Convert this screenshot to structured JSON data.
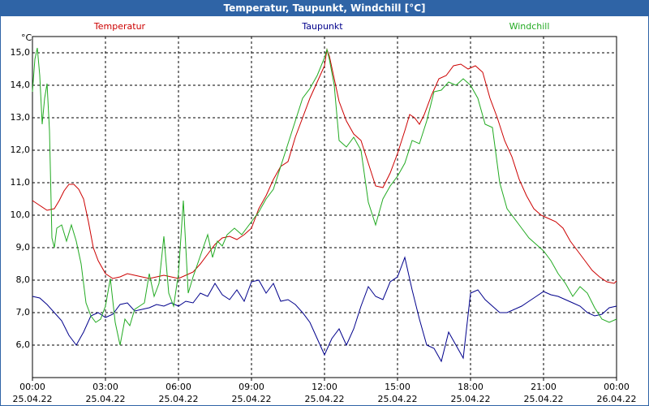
{
  "window": {
    "title": "Temperatur, Taupunkt, Windchill [°C]"
  },
  "chart_data": {
    "type": "line",
    "title": "Temperatur, Taupunkt, Windchill [°C]",
    "ylabel": "°C",
    "ylim": [
      5.0,
      15.5
    ],
    "xlim_hours": [
      0,
      24
    ],
    "yticks": [
      "6,0",
      "7,0",
      "8,0",
      "9,0",
      "10,0",
      "11,0",
      "12,0",
      "13,0",
      "14,0",
      "15,0"
    ],
    "ytick_values": [
      6,
      7,
      8,
      9,
      10,
      11,
      12,
      13,
      14,
      15
    ],
    "xticks": [
      {
        "time": "00:00",
        "date": "25.04.22",
        "hour": 0
      },
      {
        "time": "03:00",
        "date": "25.04.22",
        "hour": 3
      },
      {
        "time": "06:00",
        "date": "25.04.22",
        "hour": 6
      },
      {
        "time": "09:00",
        "date": "25.04.22",
        "hour": 9
      },
      {
        "time": "12:00",
        "date": "25.04.22",
        "hour": 12
      },
      {
        "time": "15:00",
        "date": "25.04.22",
        "hour": 15
      },
      {
        "time": "18:00",
        "date": "25.04.22",
        "hour": 18
      },
      {
        "time": "21:00",
        "date": "25.04.22",
        "hour": 21
      },
      {
        "time": "00:00",
        "date": "26.04.22",
        "hour": 24
      }
    ],
    "grid": true,
    "series": [
      {
        "name": "Temperatur",
        "color": "#cc0000",
        "points": [
          [
            0,
            10.45
          ],
          [
            0.3,
            10.3
          ],
          [
            0.6,
            10.15
          ],
          [
            0.9,
            10.2
          ],
          [
            1.1,
            10.45
          ],
          [
            1.3,
            10.75
          ],
          [
            1.5,
            10.95
          ],
          [
            1.7,
            10.95
          ],
          [
            1.9,
            10.8
          ],
          [
            2.1,
            10.5
          ],
          [
            2.3,
            9.8
          ],
          [
            2.5,
            9.0
          ],
          [
            2.7,
            8.6
          ],
          [
            3.0,
            8.2
          ],
          [
            3.3,
            8.05
          ],
          [
            3.6,
            8.1
          ],
          [
            3.9,
            8.2
          ],
          [
            4.2,
            8.15
          ],
          [
            4.5,
            8.1
          ],
          [
            4.8,
            8.05
          ],
          [
            5.1,
            8.1
          ],
          [
            5.4,
            8.15
          ],
          [
            5.7,
            8.1
          ],
          [
            6.0,
            8.05
          ],
          [
            6.3,
            8.15
          ],
          [
            6.6,
            8.25
          ],
          [
            6.9,
            8.5
          ],
          [
            7.2,
            8.8
          ],
          [
            7.5,
            9.1
          ],
          [
            7.8,
            9.3
          ],
          [
            8.1,
            9.35
          ],
          [
            8.4,
            9.25
          ],
          [
            8.7,
            9.4
          ],
          [
            9.0,
            9.6
          ],
          [
            9.3,
            10.2
          ],
          [
            9.6,
            10.6
          ],
          [
            9.9,
            11.1
          ],
          [
            10.2,
            11.5
          ],
          [
            10.5,
            11.65
          ],
          [
            10.8,
            12.4
          ],
          [
            11.1,
            13.0
          ],
          [
            11.4,
            13.6
          ],
          [
            11.7,
            14.1
          ],
          [
            12.0,
            14.6
          ],
          [
            12.1,
            15.1
          ],
          [
            12.2,
            14.9
          ],
          [
            12.4,
            14.2
          ],
          [
            12.6,
            13.5
          ],
          [
            12.9,
            12.9
          ],
          [
            13.2,
            12.5
          ],
          [
            13.5,
            12.3
          ],
          [
            13.8,
            11.6
          ],
          [
            14.1,
            10.9
          ],
          [
            14.4,
            10.85
          ],
          [
            14.7,
            11.3
          ],
          [
            15.0,
            11.9
          ],
          [
            15.3,
            12.6
          ],
          [
            15.5,
            13.1
          ],
          [
            15.7,
            13.0
          ],
          [
            15.9,
            12.8
          ],
          [
            16.1,
            13.1
          ],
          [
            16.4,
            13.7
          ],
          [
            16.7,
            14.2
          ],
          [
            17.0,
            14.3
          ],
          [
            17.3,
            14.6
          ],
          [
            17.6,
            14.65
          ],
          [
            17.9,
            14.5
          ],
          [
            18.2,
            14.6
          ],
          [
            18.5,
            14.4
          ],
          [
            18.8,
            13.6
          ],
          [
            19.1,
            13.0
          ],
          [
            19.4,
            12.3
          ],
          [
            19.7,
            11.8
          ],
          [
            20.0,
            11.1
          ],
          [
            20.3,
            10.6
          ],
          [
            20.6,
            10.2
          ],
          [
            20.9,
            10.0
          ],
          [
            21.2,
            9.9
          ],
          [
            21.5,
            9.8
          ],
          [
            21.8,
            9.6
          ],
          [
            22.1,
            9.2
          ],
          [
            22.4,
            8.9
          ],
          [
            22.7,
            8.6
          ],
          [
            23.0,
            8.3
          ],
          [
            23.3,
            8.1
          ],
          [
            23.6,
            7.95
          ],
          [
            23.9,
            7.9
          ],
          [
            24.0,
            7.98
          ]
        ]
      },
      {
        "name": "Taupunkt",
        "color": "#00008b",
        "points": [
          [
            0,
            7.5
          ],
          [
            0.3,
            7.45
          ],
          [
            0.6,
            7.25
          ],
          [
            0.9,
            7.0
          ],
          [
            1.2,
            6.75
          ],
          [
            1.5,
            6.3
          ],
          [
            1.8,
            6.0
          ],
          [
            2.1,
            6.4
          ],
          [
            2.4,
            6.9
          ],
          [
            2.7,
            7.0
          ],
          [
            3.0,
            6.85
          ],
          [
            3.3,
            6.95
          ],
          [
            3.6,
            7.25
          ],
          [
            3.9,
            7.3
          ],
          [
            4.2,
            7.05
          ],
          [
            4.5,
            7.1
          ],
          [
            4.8,
            7.15
          ],
          [
            5.1,
            7.25
          ],
          [
            5.4,
            7.2
          ],
          [
            5.7,
            7.3
          ],
          [
            6.0,
            7.2
          ],
          [
            6.3,
            7.35
          ],
          [
            6.6,
            7.3
          ],
          [
            6.9,
            7.6
          ],
          [
            7.2,
            7.5
          ],
          [
            7.5,
            7.9
          ],
          [
            7.8,
            7.55
          ],
          [
            8.1,
            7.4
          ],
          [
            8.4,
            7.7
          ],
          [
            8.7,
            7.35
          ],
          [
            9.0,
            7.95
          ],
          [
            9.3,
            8.0
          ],
          [
            9.6,
            7.6
          ],
          [
            9.9,
            7.9
          ],
          [
            10.2,
            7.35
          ],
          [
            10.5,
            7.4
          ],
          [
            10.8,
            7.25
          ],
          [
            11.1,
            7.0
          ],
          [
            11.4,
            6.7
          ],
          [
            11.7,
            6.2
          ],
          [
            12.0,
            5.7
          ],
          [
            12.3,
            6.2
          ],
          [
            12.6,
            6.5
          ],
          [
            12.9,
            6.0
          ],
          [
            13.2,
            6.5
          ],
          [
            13.5,
            7.2
          ],
          [
            13.8,
            7.8
          ],
          [
            14.1,
            7.5
          ],
          [
            14.4,
            7.4
          ],
          [
            14.7,
            7.95
          ],
          [
            15.0,
            8.1
          ],
          [
            15.3,
            8.7
          ],
          [
            15.6,
            7.7
          ],
          [
            15.9,
            6.8
          ],
          [
            16.2,
            6.0
          ],
          [
            16.5,
            5.9
          ],
          [
            16.8,
            5.5
          ],
          [
            17.1,
            6.4
          ],
          [
            17.4,
            6.0
          ],
          [
            17.7,
            5.6
          ],
          [
            18.0,
            7.6
          ],
          [
            18.3,
            7.7
          ],
          [
            18.6,
            7.4
          ],
          [
            18.9,
            7.2
          ],
          [
            19.2,
            7.0
          ],
          [
            19.5,
            7.0
          ],
          [
            19.8,
            7.1
          ],
          [
            20.1,
            7.2
          ],
          [
            20.4,
            7.35
          ],
          [
            20.7,
            7.5
          ],
          [
            21.0,
            7.65
          ],
          [
            21.3,
            7.55
          ],
          [
            21.6,
            7.5
          ],
          [
            21.9,
            7.4
          ],
          [
            22.2,
            7.3
          ],
          [
            22.5,
            7.2
          ],
          [
            22.8,
            7.0
          ],
          [
            23.1,
            6.9
          ],
          [
            23.4,
            6.95
          ],
          [
            23.7,
            7.15
          ],
          [
            24.0,
            7.2
          ]
        ]
      },
      {
        "name": "Windchill",
        "color": "#22aa22",
        "points": [
          [
            0,
            13.8
          ],
          [
            0.1,
            14.8
          ],
          [
            0.2,
            15.15
          ],
          [
            0.3,
            14.3
          ],
          [
            0.4,
            12.8
          ],
          [
            0.5,
            13.6
          ],
          [
            0.6,
            14.05
          ],
          [
            0.7,
            12.6
          ],
          [
            0.8,
            9.3
          ],
          [
            0.9,
            9.0
          ],
          [
            1.0,
            9.6
          ],
          [
            1.2,
            9.7
          ],
          [
            1.4,
            9.2
          ],
          [
            1.6,
            9.7
          ],
          [
            1.8,
            9.2
          ],
          [
            2.0,
            8.5
          ],
          [
            2.2,
            7.3
          ],
          [
            2.4,
            6.9
          ],
          [
            2.6,
            6.7
          ],
          [
            2.8,
            6.8
          ],
          [
            3.0,
            7.2
          ],
          [
            3.2,
            8.05
          ],
          [
            3.4,
            6.7
          ],
          [
            3.6,
            6.0
          ],
          [
            3.8,
            6.8
          ],
          [
            4.0,
            6.6
          ],
          [
            4.2,
            7.1
          ],
          [
            4.4,
            7.2
          ],
          [
            4.6,
            7.3
          ],
          [
            4.8,
            8.2
          ],
          [
            5.0,
            7.5
          ],
          [
            5.2,
            7.9
          ],
          [
            5.4,
            9.35
          ],
          [
            5.6,
            7.6
          ],
          [
            5.8,
            7.2
          ],
          [
            6.0,
            8.2
          ],
          [
            6.2,
            10.45
          ],
          [
            6.4,
            7.6
          ],
          [
            6.6,
            8.1
          ],
          [
            6.9,
            8.75
          ],
          [
            7.2,
            9.4
          ],
          [
            7.4,
            8.7
          ],
          [
            7.6,
            9.2
          ],
          [
            7.8,
            9.05
          ],
          [
            8.0,
            9.4
          ],
          [
            8.3,
            9.6
          ],
          [
            8.6,
            9.4
          ],
          [
            9.0,
            9.8
          ],
          [
            9.3,
            10.1
          ],
          [
            9.6,
            10.5
          ],
          [
            9.9,
            10.8
          ],
          [
            10.2,
            11.5
          ],
          [
            10.5,
            12.2
          ],
          [
            10.8,
            12.9
          ],
          [
            11.1,
            13.6
          ],
          [
            11.4,
            13.9
          ],
          [
            11.7,
            14.3
          ],
          [
            12.0,
            14.85
          ],
          [
            12.1,
            15.1
          ],
          [
            12.2,
            14.8
          ],
          [
            12.4,
            14.0
          ],
          [
            12.6,
            12.3
          ],
          [
            12.9,
            12.1
          ],
          [
            13.2,
            12.4
          ],
          [
            13.5,
            12.0
          ],
          [
            13.8,
            10.4
          ],
          [
            14.1,
            9.7
          ],
          [
            14.4,
            10.5
          ],
          [
            14.7,
            10.9
          ],
          [
            15.0,
            11.2
          ],
          [
            15.3,
            11.6
          ],
          [
            15.6,
            12.3
          ],
          [
            15.9,
            12.2
          ],
          [
            16.2,
            12.9
          ],
          [
            16.5,
            13.8
          ],
          [
            16.8,
            13.85
          ],
          [
            17.1,
            14.1
          ],
          [
            17.4,
            14.0
          ],
          [
            17.7,
            14.2
          ],
          [
            18.0,
            14.0
          ],
          [
            18.3,
            13.6
          ],
          [
            18.6,
            12.8
          ],
          [
            18.9,
            12.7
          ],
          [
            19.2,
            11.0
          ],
          [
            19.5,
            10.2
          ],
          [
            19.8,
            9.9
          ],
          [
            20.1,
            9.6
          ],
          [
            20.4,
            9.3
          ],
          [
            20.7,
            9.1
          ],
          [
            21.0,
            8.9
          ],
          [
            21.3,
            8.6
          ],
          [
            21.6,
            8.2
          ],
          [
            21.9,
            7.9
          ],
          [
            22.2,
            7.5
          ],
          [
            22.5,
            7.8
          ],
          [
            22.8,
            7.6
          ],
          [
            23.1,
            7.15
          ],
          [
            23.4,
            6.8
          ],
          [
            23.7,
            6.7
          ],
          [
            24.0,
            6.8
          ]
        ]
      }
    ]
  }
}
